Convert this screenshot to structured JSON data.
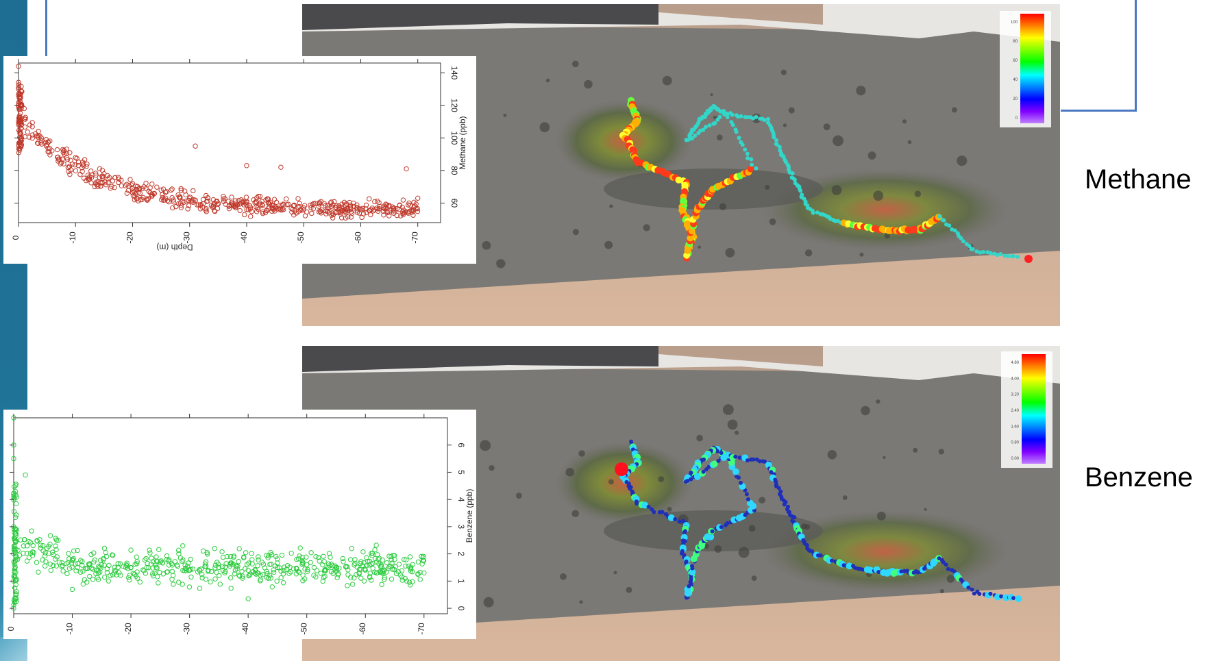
{
  "labels": {
    "methane": "Methane",
    "benzene": "Benzene"
  },
  "colors": {
    "sidebar": "#1f7396",
    "frame_line": "#4a77c2",
    "methane_points": "#c0392b",
    "benzene_points": "#2ecc40",
    "seafloor": "#7a7874",
    "sand": "#c9a98f"
  },
  "colorbars": {
    "methane": {
      "tick_labels": [
        "0",
        "20",
        "40",
        "60",
        "80",
        "100"
      ]
    },
    "benzene": {
      "tick_labels": [
        "0.00",
        "0.80",
        "1.60",
        "2.40",
        "3.20",
        "4.00",
        "4.80"
      ]
    }
  },
  "chart_data": [
    {
      "type": "scatter",
      "id": "methane",
      "xlabel": "Depth (m)",
      "ylabel": "Methane (ppb)",
      "xlim": [
        0,
        -74
      ],
      "ylim": [
        48,
        146
      ],
      "xticks": [
        "0",
        "-10",
        "-20",
        "-30",
        "-40",
        "-50",
        "-60",
        "-70"
      ],
      "xtick_values": [
        0,
        -10,
        -20,
        -30,
        -40,
        -50,
        -60,
        -70
      ],
      "yticks": [
        "60",
        "80",
        "100",
        "120",
        "140"
      ],
      "ytick_values": [
        60,
        80,
        100,
        120,
        140
      ],
      "marker": "open-circle",
      "color": "#c0392b",
      "n_points": 620,
      "trend": "exponential decay from ~115 ppb at the surface to ~58 ppb below 40 m",
      "sample_points": [
        [
          0,
          144
        ],
        [
          0,
          130
        ],
        [
          0,
          120
        ],
        [
          0,
          110
        ],
        [
          -1,
          118
        ],
        [
          -2,
          108
        ],
        [
          -4,
          100
        ],
        [
          -5,
          96
        ],
        [
          -8,
          92
        ],
        [
          -10,
          88
        ],
        [
          -12,
          84
        ],
        [
          -15,
          78
        ],
        [
          -18,
          74
        ],
        [
          -20,
          72
        ],
        [
          -22,
          70
        ],
        [
          -25,
          68
        ],
        [
          -28,
          65
        ],
        [
          -30,
          63
        ],
        [
          -33,
          61
        ],
        [
          -35,
          60
        ],
        [
          -40,
          59
        ],
        [
          -45,
          58
        ],
        [
          -50,
          57
        ],
        [
          -55,
          57
        ],
        [
          -60,
          56
        ],
        [
          -65,
          58
        ],
        [
          -68,
          81
        ],
        [
          -40,
          83
        ],
        [
          -46,
          82
        ],
        [
          -31,
          95
        ],
        [
          -70,
          63
        ]
      ]
    },
    {
      "type": "scatter",
      "id": "benzene",
      "xlabel": "",
      "ylabel": "Benzene (ppb)",
      "xlim": [
        0,
        -74
      ],
      "ylim": [
        -0.2,
        7.0
      ],
      "xticks": [
        "0",
        "-10",
        "-20",
        "-30",
        "-40",
        "-50",
        "-60",
        "-70"
      ],
      "xtick_values": [
        0,
        -10,
        -20,
        -30,
        -40,
        -50,
        -60,
        -70
      ],
      "yticks": [
        "0",
        "1",
        "2",
        "3",
        "4",
        "5",
        "6"
      ],
      "ytick_values": [
        0,
        1,
        2,
        3,
        4,
        5,
        6
      ],
      "marker": "open-circle",
      "color": "#2ecc40",
      "n_points": 620,
      "trend": "roughly constant 1-2.5 ppb with a vertical cluster up to ~7 ppb at the surface",
      "sample_points": [
        [
          0,
          7
        ],
        [
          0,
          6
        ],
        [
          0,
          5.5
        ],
        [
          0,
          4.2
        ],
        [
          0,
          3
        ],
        [
          0,
          2
        ],
        [
          0,
          1
        ],
        [
          0,
          0
        ],
        [
          -2,
          4.9
        ],
        [
          -5,
          2.3
        ],
        [
          -10,
          1.8
        ],
        [
          -15,
          1.6
        ],
        [
          -20,
          1.5
        ],
        [
          -25,
          1.7
        ],
        [
          -30,
          1.4
        ],
        [
          -35,
          1.5
        ],
        [
          -40,
          0.35
        ],
        [
          -40,
          1.4
        ],
        [
          -45,
          1.5
        ],
        [
          -50,
          1.6
        ],
        [
          -55,
          1.5
        ],
        [
          -60,
          1.4
        ],
        [
          -65,
          1.8
        ],
        [
          -70,
          1.3
        ]
      ]
    }
  ]
}
